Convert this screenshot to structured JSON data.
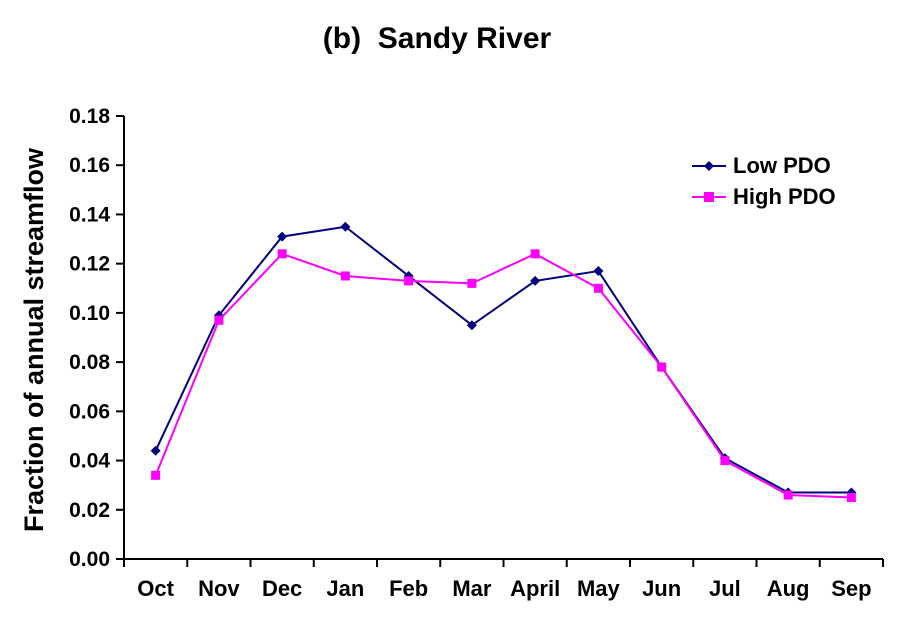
{
  "chart_data": {
    "type": "line",
    "title": "(b)  Sandy River",
    "ylabel": "Fraction of annual streamflow",
    "xlabel": "",
    "categories": [
      "Oct",
      "Nov",
      "Dec",
      "Jan",
      "Feb",
      "Mar",
      "April",
      "May",
      "Jun",
      "Jul",
      "Aug",
      "Sep"
    ],
    "series": [
      {
        "name": "Low PDO",
        "color": "#000080",
        "marker": "diamond",
        "values": [
          0.044,
          0.099,
          0.131,
          0.135,
          0.115,
          0.095,
          0.113,
          0.117,
          0.078,
          0.041,
          0.027,
          0.027
        ]
      },
      {
        "name": "High PDO",
        "color": "#FF00FF",
        "marker": "square",
        "values": [
          0.034,
          0.097,
          0.124,
          0.115,
          0.113,
          0.112,
          0.124,
          0.11,
          0.078,
          0.04,
          0.026,
          0.025
        ]
      }
    ],
    "ylim": [
      0,
      0.18
    ],
    "ytick_step": 0.02,
    "ytick_decimals": 2,
    "grid": false,
    "legend_position": "inside-upper-right",
    "axis_color": "#000000",
    "background_color": "#FFFFFF"
  }
}
